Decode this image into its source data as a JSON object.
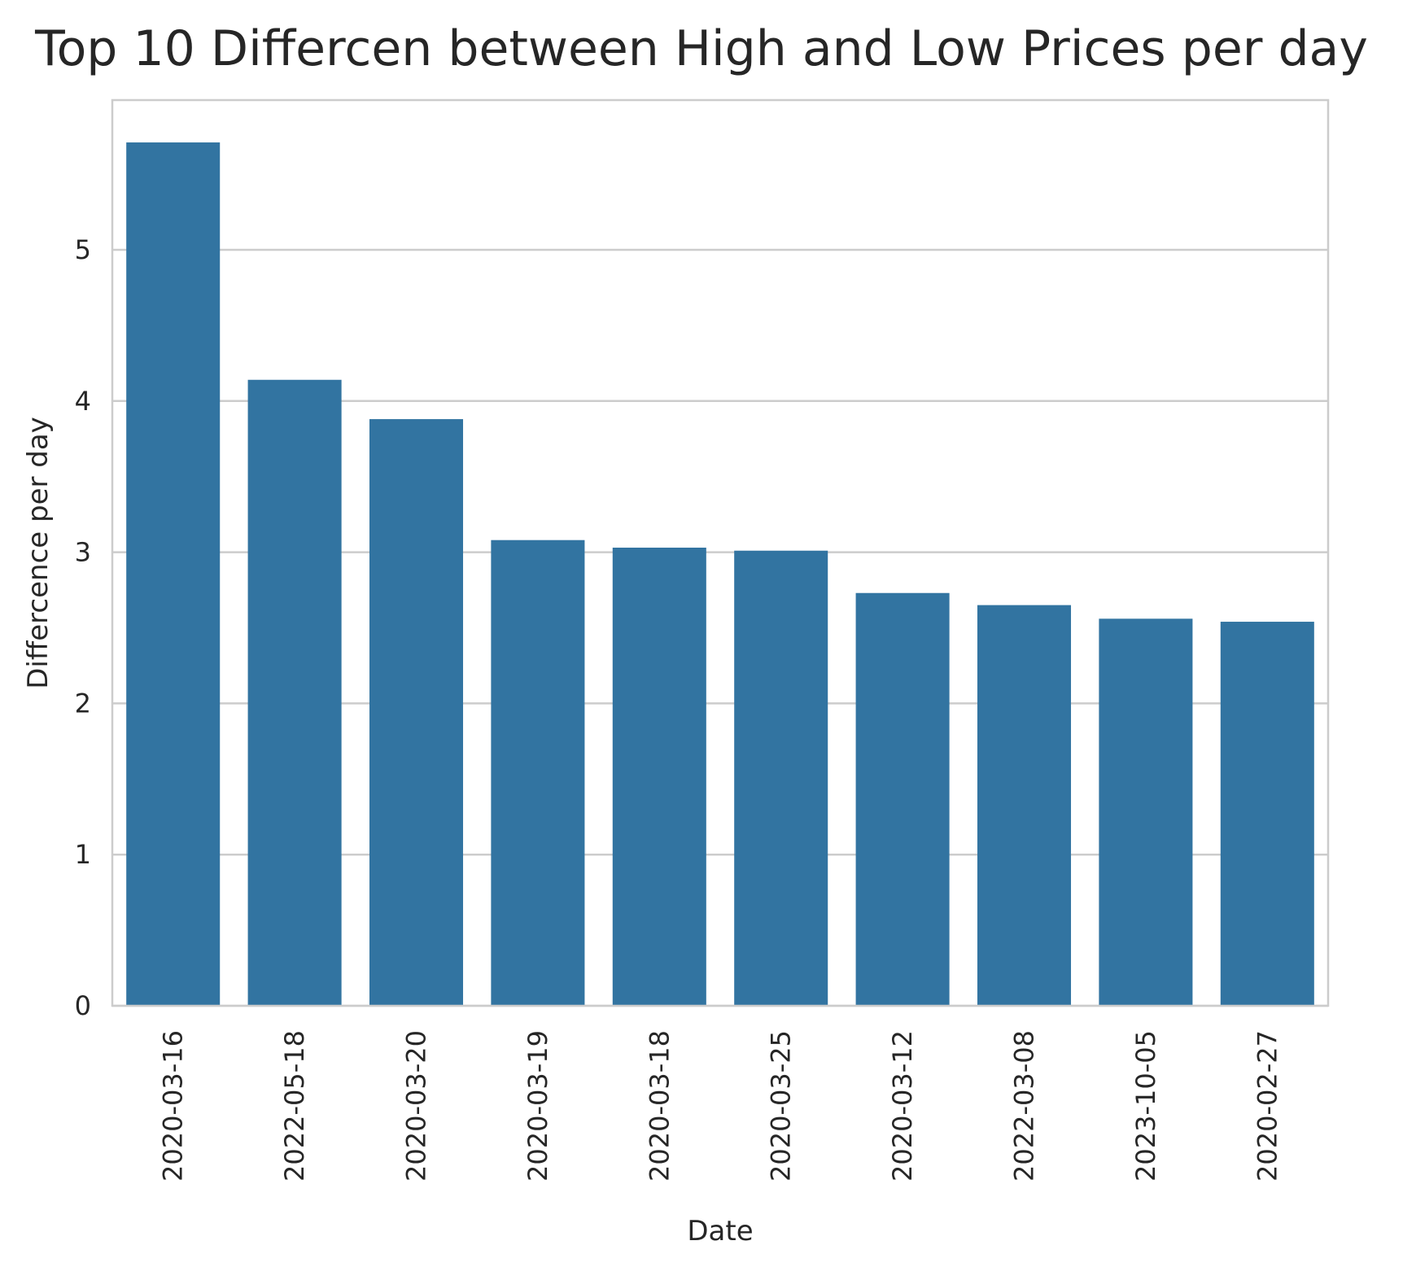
{
  "chart_data": {
    "type": "bar",
    "title": "Top 10 Differcen between High and Low Prices per day",
    "xlabel": "Date",
    "ylabel": "Differcence per day",
    "categories": [
      "2020-03-16",
      "2022-05-18",
      "2020-03-20",
      "2020-03-19",
      "2020-03-18",
      "2020-03-25",
      "2020-03-12",
      "2022-03-08",
      "2023-10-05",
      "2020-02-27"
    ],
    "values": [
      5.71,
      4.14,
      3.88,
      3.08,
      3.03,
      3.01,
      2.73,
      2.65,
      2.56,
      2.54
    ],
    "yticks": [
      0,
      1,
      2,
      3,
      4,
      5
    ],
    "ylim": [
      0,
      5.99
    ],
    "grid": "horizontal",
    "bar_color": "#3274a1",
    "grid_color": "#cccccc",
    "text_color": "#262626",
    "background": "#ffffff"
  }
}
